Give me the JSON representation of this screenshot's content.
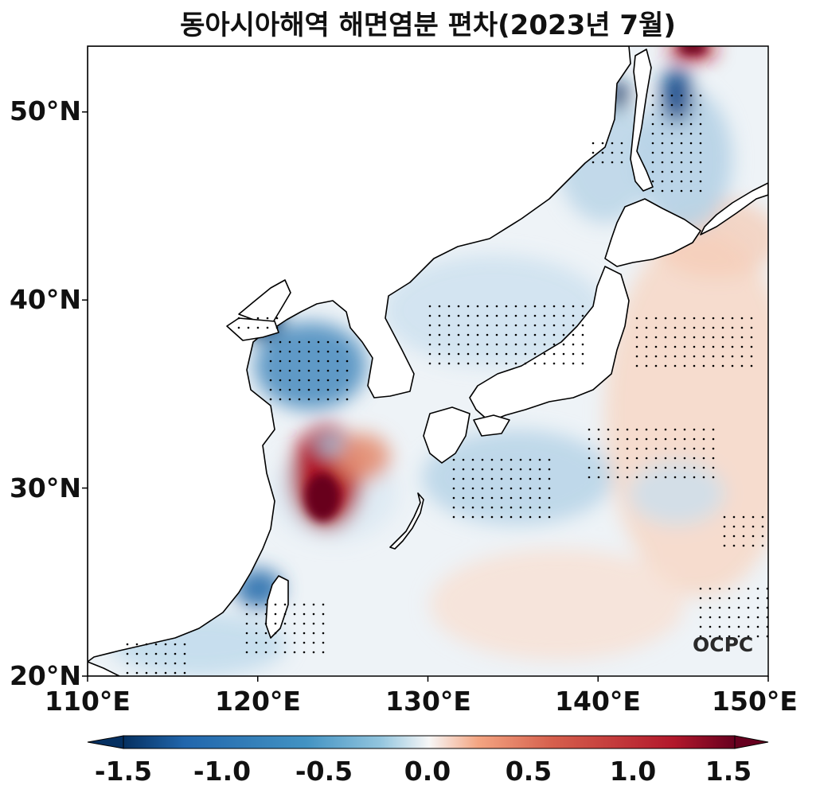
{
  "title": "동아시아해역 해면염분 편차(2023년 7월)",
  "map": {
    "lon_range": [
      110,
      150
    ],
    "lat_range": [
      20,
      53.5
    ],
    "lon_ticks": [
      {
        "value": 110,
        "label": "110°E"
      },
      {
        "value": 120,
        "label": "120°E"
      },
      {
        "value": 130,
        "label": "130°E"
      },
      {
        "value": 140,
        "label": "140°E"
      },
      {
        "value": 150,
        "label": "150°E"
      }
    ],
    "lat_ticks": [
      {
        "value": 20,
        "label": "20°N"
      },
      {
        "value": 30,
        "label": "30°N"
      },
      {
        "value": 40,
        "label": "40°N"
      },
      {
        "value": 50,
        "label": "50°N"
      }
    ],
    "stippling": "significant anomaly dots",
    "land_color": "#ffffff",
    "coastline_color": "#000000"
  },
  "colorbar": {
    "colormap": "RdBu_r",
    "range": [
      -1.5,
      1.5
    ],
    "extend": "both",
    "low_color": "#053061",
    "mid_color": "#f7f7f7",
    "high_color": "#67001f",
    "ticks": [
      {
        "value": -1.5,
        "label": "-1.5"
      },
      {
        "value": -1.0,
        "label": "-1.0"
      },
      {
        "value": -0.5,
        "label": "-0.5"
      },
      {
        "value": 0.0,
        "label": "0.0"
      },
      {
        "value": 0.5,
        "label": "0.5"
      },
      {
        "value": 1.0,
        "label": "1.0"
      },
      {
        "value": 1.5,
        "label": "1.5"
      }
    ]
  },
  "logo_text": "OCPC"
}
